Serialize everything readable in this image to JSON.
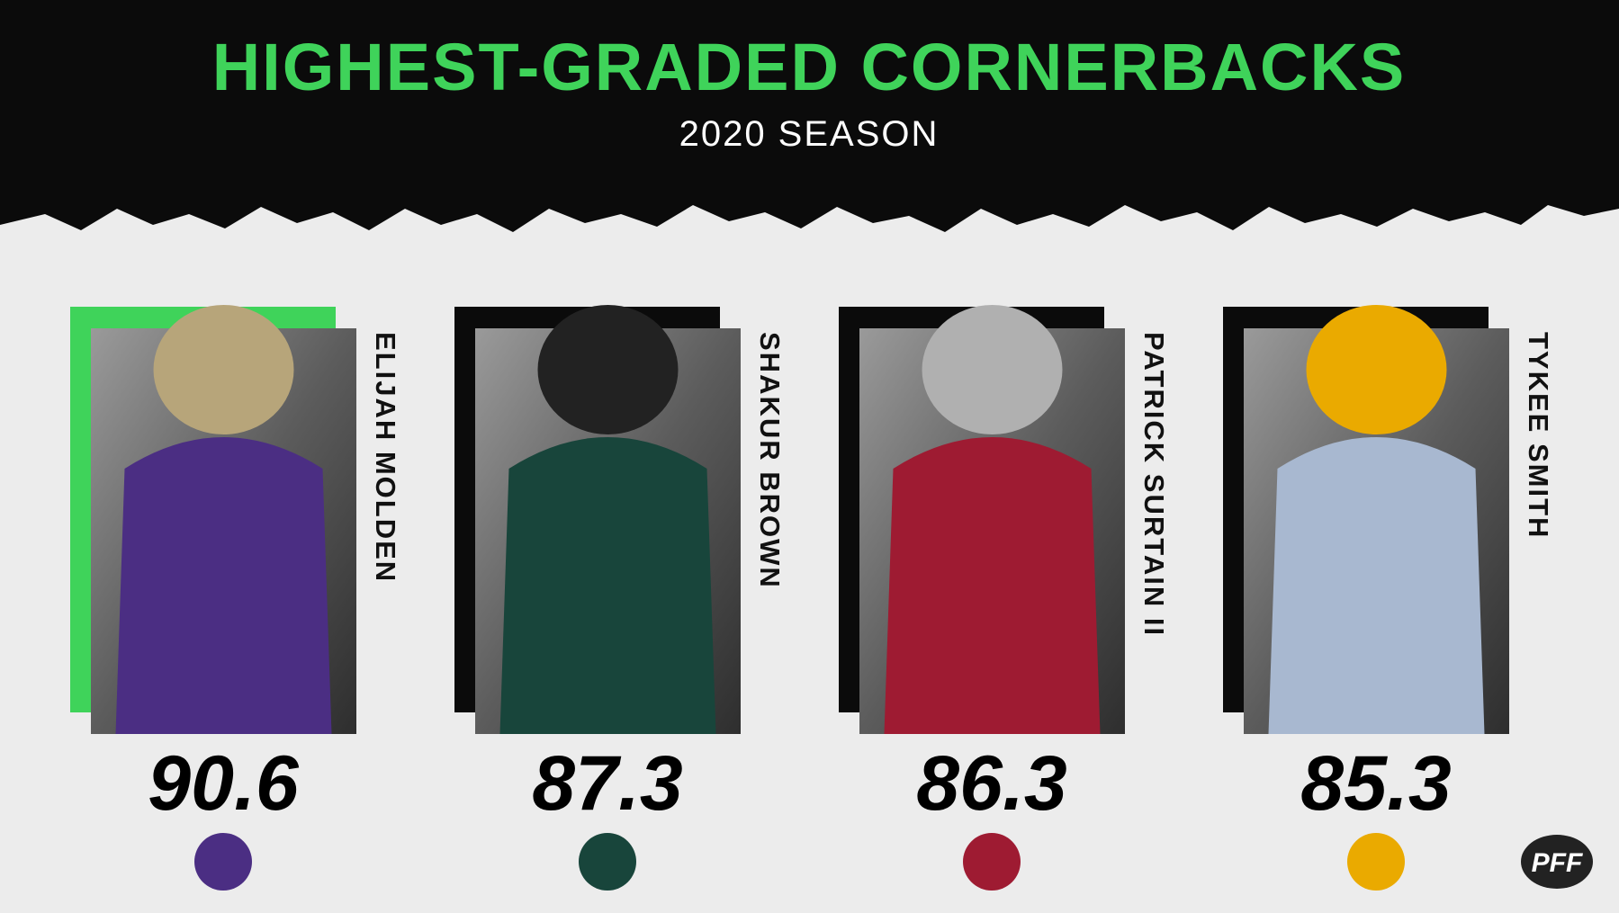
{
  "header": {
    "title": "HIGHEST-GRADED CORNERBACKS",
    "subtitle": "2020 SEASON"
  },
  "players": [
    {
      "name": "ELIJAH MOLDEN",
      "grade": "90.6"
    },
    {
      "name": "SHAKUR BROWN",
      "grade": "87.3"
    },
    {
      "name": "PATRICK SURTAIN II",
      "grade": "86.3"
    },
    {
      "name": "TYKEE SMITH",
      "grade": "85.3"
    }
  ],
  "brand": "PFF"
}
